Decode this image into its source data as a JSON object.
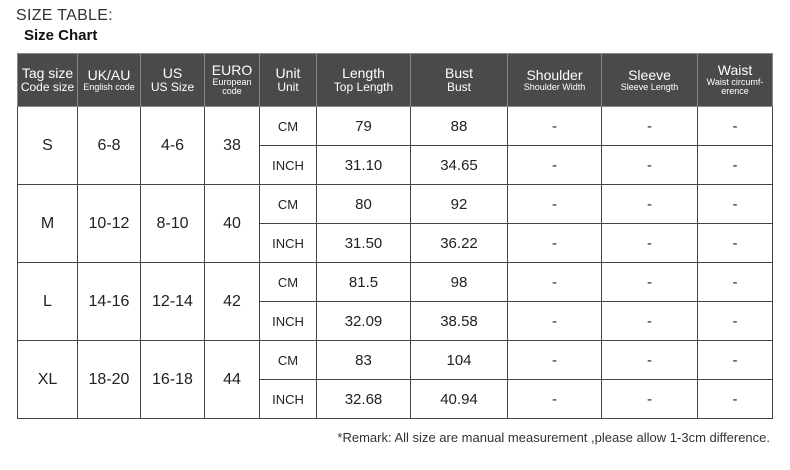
{
  "title": "SIZE TABLE:",
  "subtitle": "Size Chart",
  "headers": [
    {
      "main": "Tag size",
      "sub": "Code size",
      "small": false
    },
    {
      "main": "UK/AU",
      "sub": "English code",
      "small": true
    },
    {
      "main": "US",
      "sub": "US Size",
      "small": false
    },
    {
      "main": "EURO",
      "sub": "European code",
      "small": true
    },
    {
      "main": "Unit",
      "sub": "Unit",
      "small": false
    },
    {
      "main": "Length",
      "sub": "Top Length",
      "small": false
    },
    {
      "main": "Bust",
      "sub": "Bust",
      "small": false
    },
    {
      "main": "Shoulder",
      "sub": "Shoulder Width",
      "small": true
    },
    {
      "main": "Sleeve",
      "sub": "Sleeve Length",
      "small": true
    },
    {
      "main": "Waist",
      "sub": "Waist circumf-erence",
      "small": true
    }
  ],
  "rows": [
    {
      "tag": "S",
      "uk": "6-8",
      "us": "4-6",
      "euro": "38",
      "cm": [
        "79",
        "88",
        "-",
        "-",
        "-"
      ],
      "inch": [
        "31.10",
        "34.65",
        "-",
        "-",
        "-"
      ]
    },
    {
      "tag": "M",
      "uk": "10-12",
      "us": "8-10",
      "euro": "40",
      "cm": [
        "80",
        "92",
        "-",
        "-",
        "-"
      ],
      "inch": [
        "31.50",
        "36.22",
        "-",
        "-",
        "-"
      ]
    },
    {
      "tag": "L",
      "uk": "14-16",
      "us": "12-14",
      "euro": "42",
      "cm": [
        "81.5",
        "98",
        "-",
        "-",
        "-"
      ],
      "inch": [
        "32.09",
        "38.58",
        "-",
        "-",
        "-"
      ]
    },
    {
      "tag": "XL",
      "uk": "18-20",
      "us": "16-18",
      "euro": "44",
      "cm": [
        "83",
        "104",
        "-",
        "-",
        "-"
      ],
      "inch": [
        "32.68",
        "40.94",
        "-",
        "-",
        "-"
      ]
    }
  ],
  "units": {
    "cm": "CM",
    "inch": "INCH"
  },
  "remark": "*Remark: All size are manual measurement ,please allow 1-3cm difference."
}
